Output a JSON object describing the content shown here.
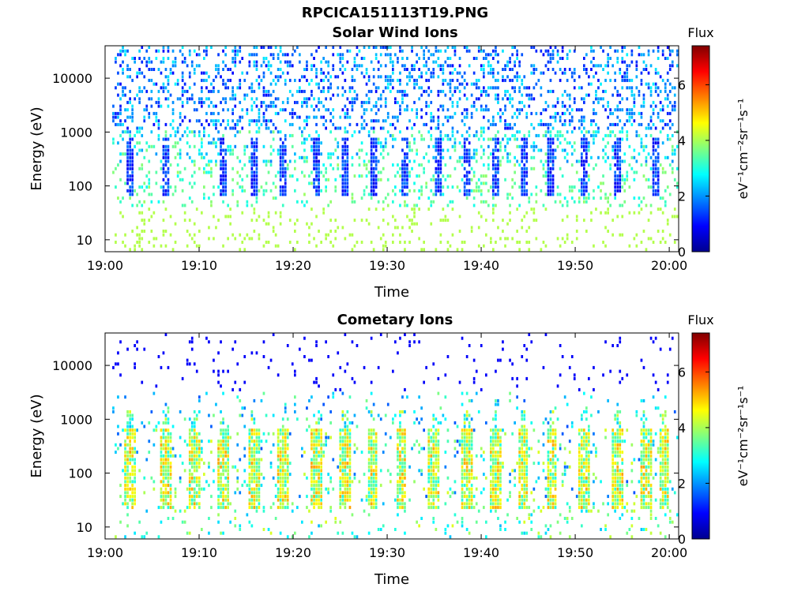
{
  "figure": {
    "filename": "RPCICA151113T19.PNG"
  },
  "chart_data": [
    {
      "type": "heatmap",
      "title": "Solar Wind Ions",
      "xlabel": "Time",
      "ylabel": "Energy (eV)",
      "x_range": [
        "19:00",
        "20:01"
      ],
      "x_ticks": [
        "19:00",
        "19:10",
        "19:20",
        "19:30",
        "19:40",
        "19:50",
        "20:00"
      ],
      "y_scale": "log",
      "y_range": [
        6,
        40000
      ],
      "y_ticks": [
        10,
        100,
        1000,
        10000
      ],
      "y_tick_labels": [
        "10",
        "100",
        "1000",
        "10000"
      ],
      "colorbar": {
        "label_top": "Flux",
        "label": "eV⁻¹cm⁻²sr⁻¹s⁻¹",
        "range": [
          0,
          7.4
        ],
        "ticks": [
          0,
          2,
          4,
          6
        ],
        "colormap": "jet"
      },
      "bursts_at_minute": [
        2.7,
        6.5,
        12.5,
        15.8,
        19.0,
        22.5,
        25.5,
        28.5,
        32.0,
        35.5,
        38.5,
        41.5,
        44.5,
        47.5,
        51.0,
        54.5,
        58.5
      ],
      "background": "white"
    },
    {
      "type": "heatmap",
      "title": "Cometary Ions",
      "xlabel": "Time",
      "ylabel": "Energy (eV)",
      "x_range": [
        "19:00",
        "20:01"
      ],
      "x_ticks": [
        "19:00",
        "19:10",
        "19:20",
        "19:30",
        "19:40",
        "19:50",
        "20:00"
      ],
      "y_scale": "log",
      "y_range": [
        6,
        40000
      ],
      "y_ticks": [
        10,
        100,
        1000,
        10000
      ],
      "y_tick_labels": [
        "10",
        "100",
        "1000",
        "10000"
      ],
      "colorbar": {
        "label_top": "Flux",
        "label": "eV⁻¹cm⁻²sr⁻¹s⁻¹",
        "range": [
          0,
          7.4
        ],
        "ticks": [
          0,
          2,
          4,
          6
        ],
        "colormap": "jet"
      },
      "bursts_at_minute": [
        2.7,
        6.5,
        9.5,
        12.5,
        15.8,
        19.0,
        22.5,
        25.5,
        28.5,
        31.5,
        35.0,
        38.5,
        41.5,
        44.5,
        47.5,
        51.0,
        54.5,
        57.5,
        59.5
      ],
      "background": "white"
    }
  ]
}
